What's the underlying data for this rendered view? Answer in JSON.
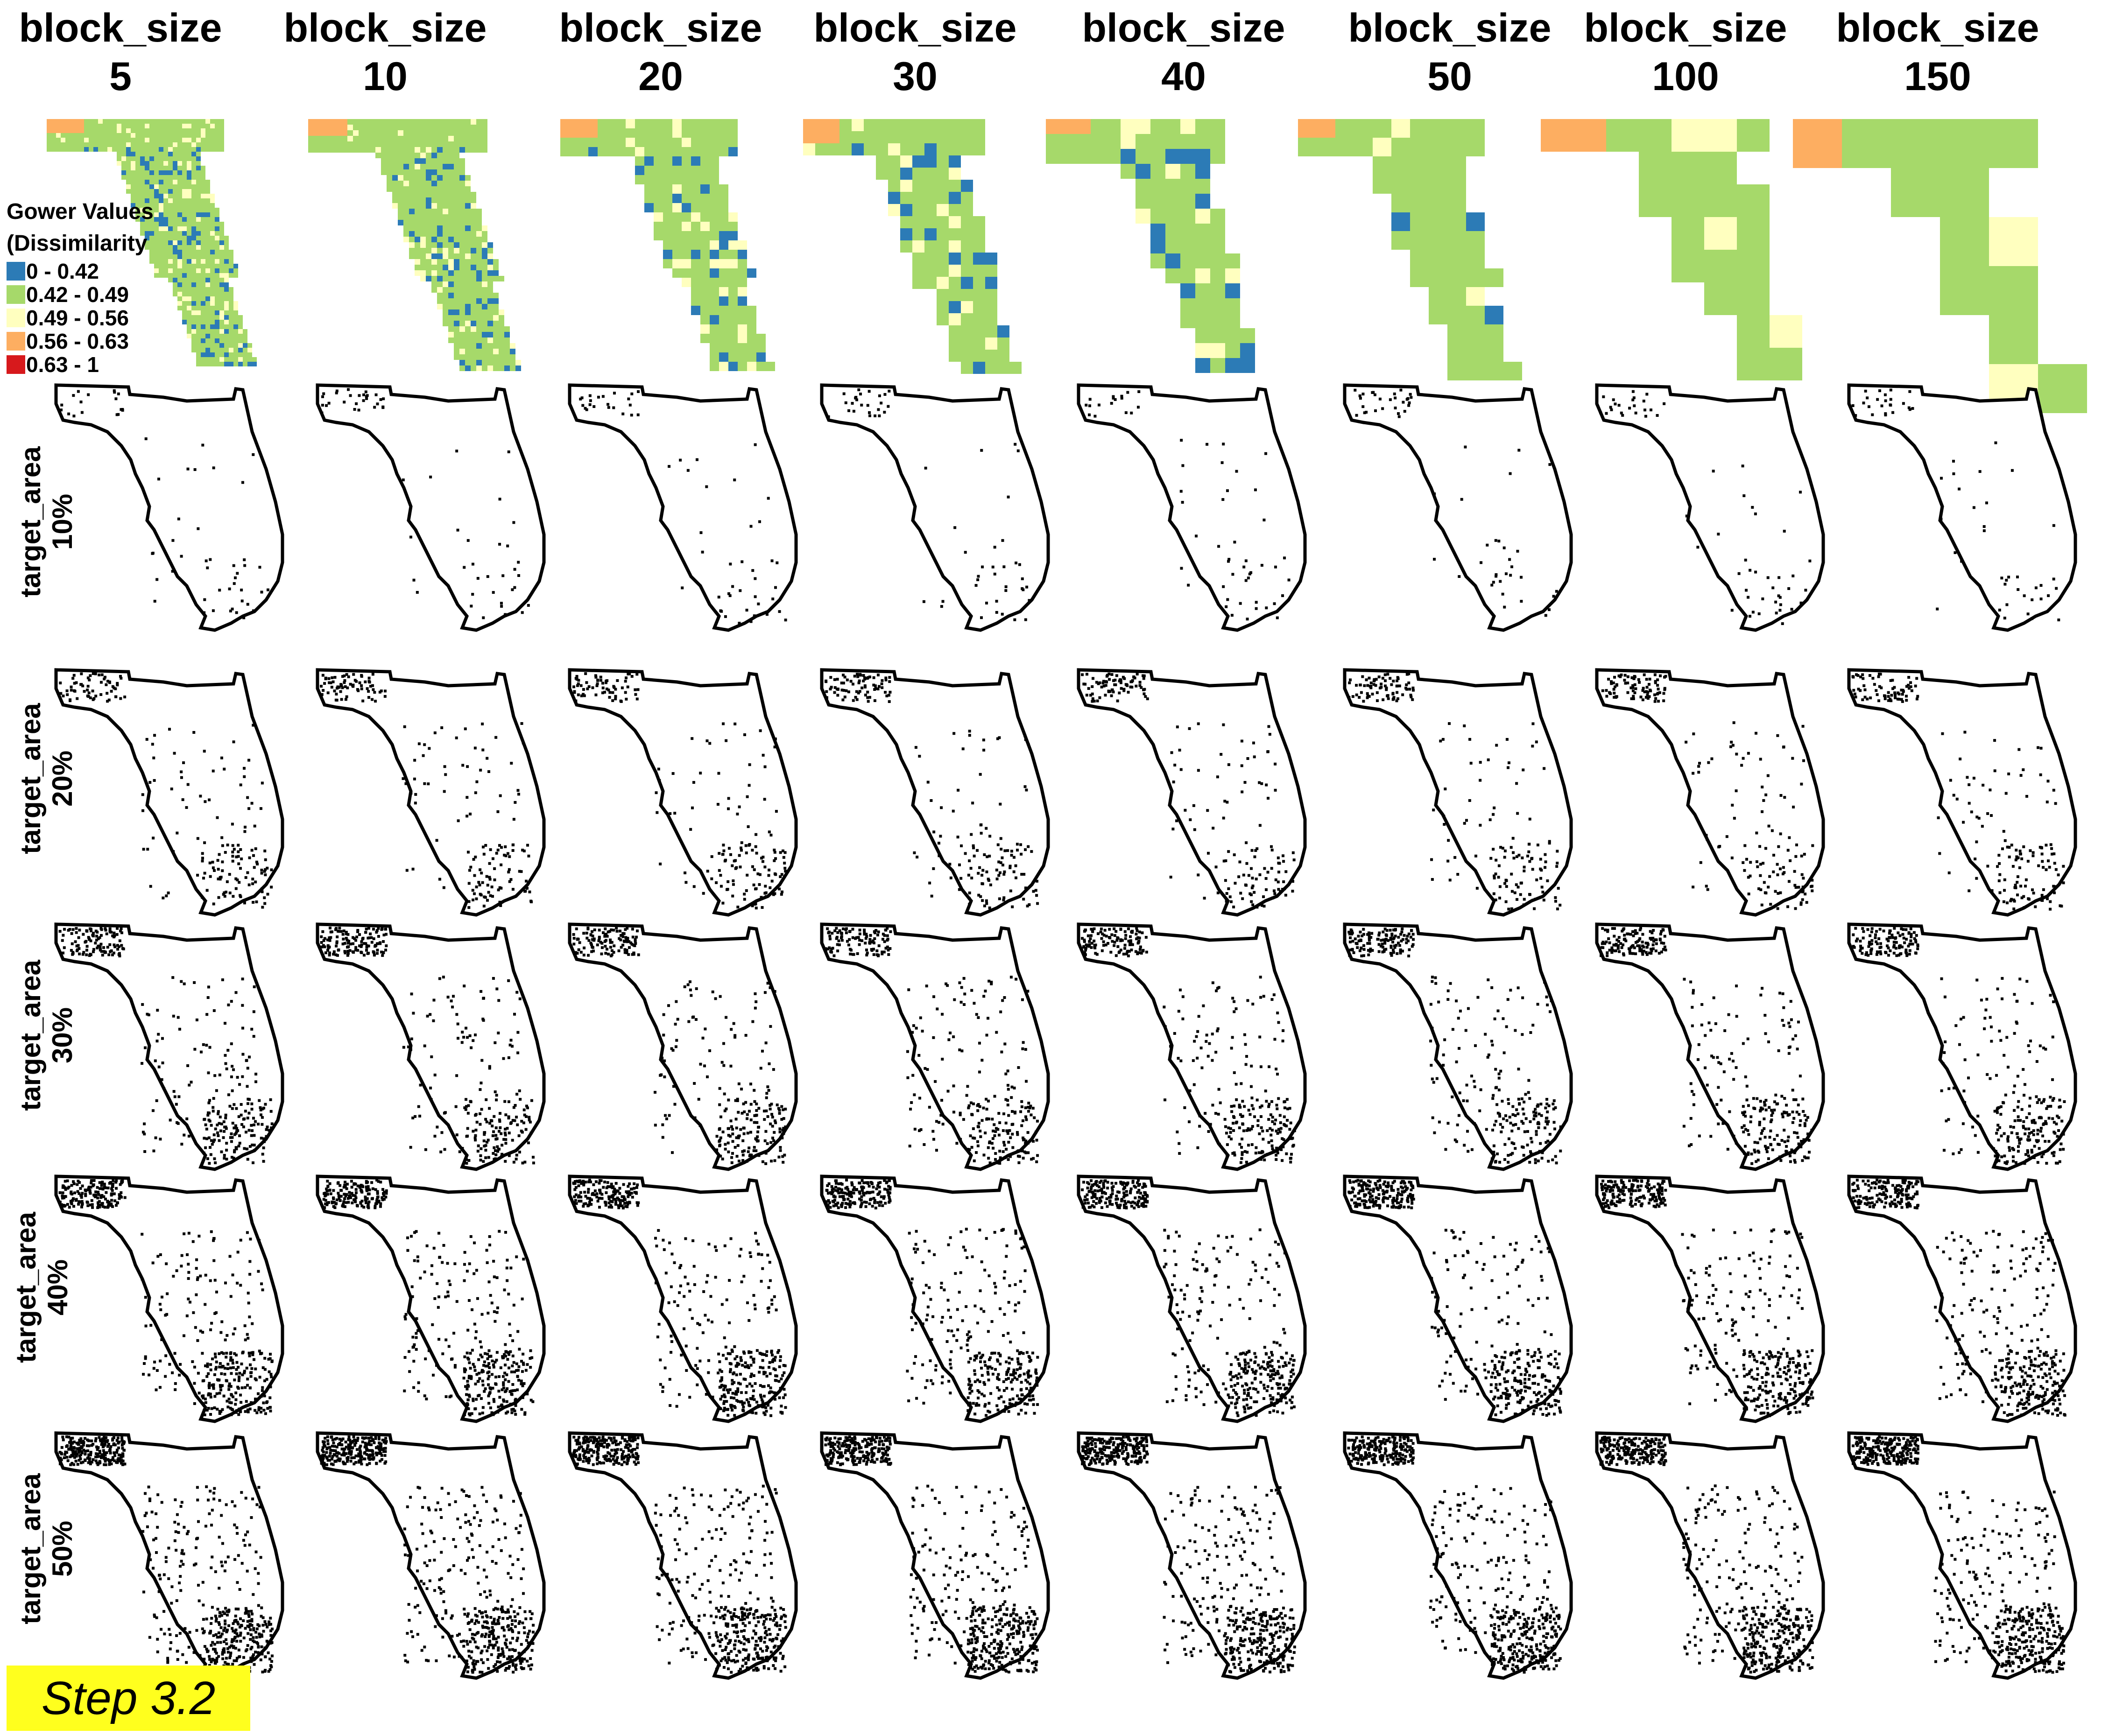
{
  "columns": [
    {
      "line1": "block_size",
      "line2": "5"
    },
    {
      "line1": "block_size",
      "line2": "10"
    },
    {
      "line1": "block_size",
      "line2": "20"
    },
    {
      "line1": "block_size",
      "line2": "30"
    },
    {
      "line1": "block_size",
      "line2": "40"
    },
    {
      "line1": "block_size",
      "line2": "50"
    },
    {
      "line1": "block_size",
      "line2": "100"
    },
    {
      "line1": "block_size",
      "line2": "150"
    }
  ],
  "rows": [
    {
      "line1": "target_area",
      "line2": "10%"
    },
    {
      "line1": "target_area",
      "line2": "20%"
    },
    {
      "line1": "target_area",
      "line2": "30%"
    },
    {
      "line1": "target_area",
      "line2": "40%"
    },
    {
      "line1": "target_area",
      "line2": "50%"
    }
  ],
  "legend": {
    "title_line1": "Gower Values",
    "title_line2": "(Dissimilarity",
    "items": [
      {
        "label": "0 - 0.42",
        "color": "#2c7bb6"
      },
      {
        "label": "0.42 - 0.49",
        "color": "#a6d96a"
      },
      {
        "label": "0.49 - 0.56",
        "color": "#ffffbf"
      },
      {
        "label": "0.56 - 0.63",
        "color": "#fdae61"
      },
      {
        "label": "0.63 - 1",
        "color": "#d7191c"
      }
    ]
  },
  "step_label": "Step 3.2"
}
